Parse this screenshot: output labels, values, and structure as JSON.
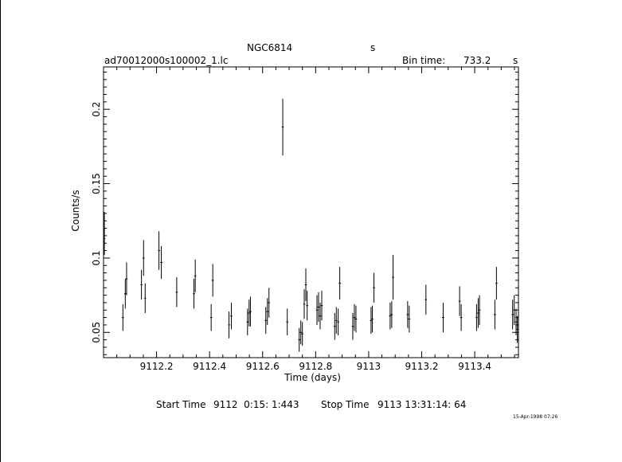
{
  "header": {
    "object": "NGC6814",
    "object_unit": "s",
    "file": "ad70012000s100002_1.lc",
    "bin_label": "Bin time:",
    "bin_value": "733.2",
    "bin_unit": "s"
  },
  "footer": {
    "start_label": "Start Time",
    "start_value": "9112  0:15: 1:443",
    "stop_label": "Stop Time",
    "stop_value": "9113 13:31:14: 64",
    "stamp": "15-Apr-1998 07:26"
  },
  "chart_data": {
    "type": "scatter",
    "xlabel": "Time (days)",
    "ylabel": "Counts/s",
    "xlim": [
      9112.0,
      9113.565
    ],
    "ylim": [
      0.033,
      0.2285
    ],
    "xticks": [
      9112.2,
      9112.4,
      9112.6,
      9112.8,
      9113.0,
      9113.2,
      9113.4
    ],
    "xtick_labels": [
      "9112.2",
      "9112.4",
      "9112.6",
      "9112.8",
      "9113",
      "9113.2",
      "9113.4"
    ],
    "yticks": [
      0.05,
      0.1,
      0.15,
      0.2
    ],
    "ytick_labels": [
      "0.05",
      "0.1",
      "0.15",
      "0.2"
    ],
    "grid": false,
    "series": [
      {
        "x_halfwidth": 0.004,
        "points": [
          [
            9112.003,
            0.12,
            0.011
          ],
          [
            9112.003,
            0.113,
            0.011
          ],
          [
            9112.073,
            0.06,
            0.009
          ],
          [
            9112.082,
            0.076,
            0.01
          ],
          [
            9112.087,
            0.086,
            0.011
          ],
          [
            9112.143,
            0.082,
            0.01
          ],
          [
            9112.151,
            0.1,
            0.012
          ],
          [
            9112.157,
            0.073,
            0.01
          ],
          [
            9112.209,
            0.105,
            0.013
          ],
          [
            9112.218,
            0.097,
            0.011
          ],
          [
            9112.276,
            0.077,
            0.01
          ],
          [
            9112.341,
            0.076,
            0.01
          ],
          [
            9112.346,
            0.088,
            0.011
          ],
          [
            9112.406,
            0.06,
            0.009
          ],
          [
            9112.412,
            0.085,
            0.011
          ],
          [
            9112.473,
            0.055,
            0.009
          ],
          [
            9112.482,
            0.061,
            0.009
          ],
          [
            9112.543,
            0.057,
            0.009
          ],
          [
            9112.549,
            0.063,
            0.009
          ],
          [
            9112.554,
            0.064,
            0.01
          ],
          [
            9112.612,
            0.058,
            0.009
          ],
          [
            9112.618,
            0.064,
            0.009
          ],
          [
            9112.624,
            0.07,
            0.01
          ],
          [
            9112.676,
            0.188,
            0.019
          ],
          [
            9112.693,
            0.057,
            0.009
          ],
          [
            9112.738,
            0.045,
            0.008
          ],
          [
            9112.744,
            0.05,
            0.008
          ],
          [
            9112.75,
            0.049,
            0.008
          ],
          [
            9112.757,
            0.069,
            0.01
          ],
          [
            9112.763,
            0.082,
            0.011
          ],
          [
            9112.768,
            0.068,
            0.01
          ],
          [
            9112.805,
            0.065,
            0.01
          ],
          [
            9112.811,
            0.067,
            0.01
          ],
          [
            9112.817,
            0.061,
            0.009
          ],
          [
            9112.823,
            0.068,
            0.01
          ],
          [
            9112.872,
            0.054,
            0.009
          ],
          [
            9112.878,
            0.058,
            0.009
          ],
          [
            9112.885,
            0.057,
            0.009
          ],
          [
            9112.891,
            0.083,
            0.011
          ],
          [
            9112.94,
            0.054,
            0.009
          ],
          [
            9112.946,
            0.06,
            0.009
          ],
          [
            9112.952,
            0.059,
            0.009
          ],
          [
            9113.009,
            0.058,
            0.009
          ],
          [
            9113.014,
            0.059,
            0.009
          ],
          [
            9113.02,
            0.08,
            0.01
          ],
          [
            9113.081,
            0.061,
            0.009
          ],
          [
            9113.087,
            0.062,
            0.009
          ],
          [
            9113.092,
            0.087,
            0.015
          ],
          [
            9113.147,
            0.062,
            0.009
          ],
          [
            9113.153,
            0.059,
            0.009
          ],
          [
            9113.216,
            0.072,
            0.01
          ],
          [
            9113.281,
            0.06,
            0.01
          ],
          [
            9113.343,
            0.071,
            0.01
          ],
          [
            9113.349,
            0.06,
            0.009
          ],
          [
            9113.407,
            0.06,
            0.009
          ],
          [
            9113.413,
            0.063,
            0.01
          ],
          [
            9113.418,
            0.065,
            0.01
          ],
          [
            9113.476,
            0.062,
            0.01
          ],
          [
            9113.482,
            0.083,
            0.011
          ],
          [
            9113.543,
            0.062,
            0.01
          ],
          [
            9113.549,
            0.065,
            0.01
          ],
          [
            9113.556,
            0.057,
            0.009
          ],
          [
            9113.561,
            0.052,
            0.009
          ]
        ]
      }
    ]
  }
}
